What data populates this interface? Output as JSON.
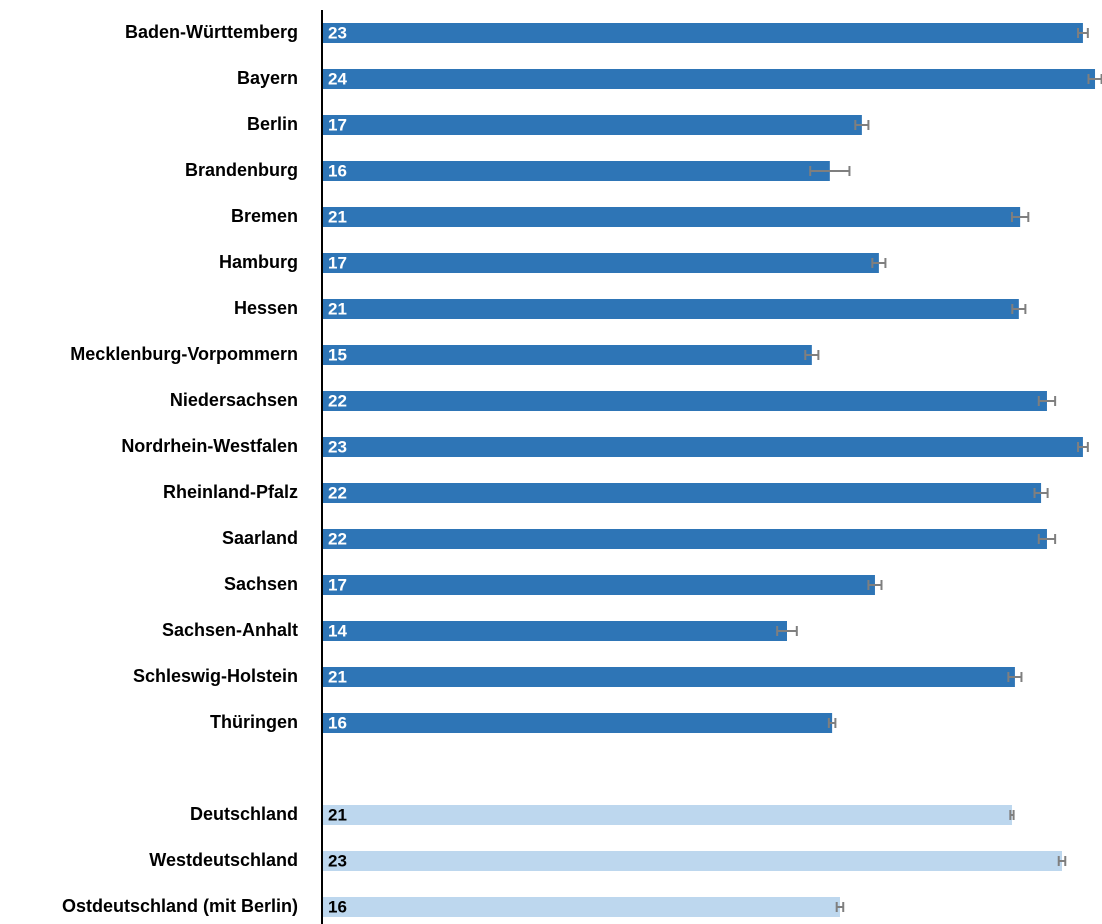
{
  "chart_data": {
    "type": "barh",
    "categories": [
      "Baden-Württemberg",
      "Bayern",
      "Berlin",
      "Brandenburg",
      "Bremen",
      "Hamburg",
      "Hessen",
      "Mecklenburg-Vorpommern",
      "Niedersachsen",
      "Nordrhein-Westfalen",
      "Rheinland-Pfalz",
      "Saarland",
      "Sachsen",
      "Sachsen-Anhalt",
      "Schleswig-Holstein",
      "Thüringen",
      null,
      "Deutschland",
      "Westdeutschland",
      "Ostdeutschland (mit Berlin)"
    ],
    "values": [
      23.27,
      23.64,
      16.51,
      15.53,
      21.35,
      17.03,
      21.31,
      14.98,
      22.17,
      23.27,
      21.99,
      22.17,
      16.91,
      14.22,
      21.19,
      15.6,
      null,
      21.1,
      22.63,
      15.84
    ],
    "value_labels": [
      "23",
      "24",
      "17",
      "16",
      "21",
      "17",
      "21",
      "15",
      "22",
      "23",
      "22",
      "22",
      "17",
      "14",
      "21",
      "16",
      null,
      "21",
      "23",
      "16"
    ],
    "errors": [
      0.15,
      0.2,
      0.2,
      0.6,
      0.25,
      0.2,
      0.2,
      0.2,
      0.25,
      0.15,
      0.2,
      0.25,
      0.2,
      0.3,
      0.2,
      0.1,
      null,
      0.05,
      0.1,
      0.1
    ],
    "colors": [
      "#2e75b6",
      "#2e75b6",
      "#2e75b6",
      "#2e75b6",
      "#2e75b6",
      "#2e75b6",
      "#2e75b6",
      "#2e75b6",
      "#2e75b6",
      "#2e75b6",
      "#2e75b6",
      "#2e75b6",
      "#2e75b6",
      "#2e75b6",
      "#2e75b6",
      "#2e75b6",
      null,
      "#bdd7ee",
      "#bdd7ee",
      "#bdd7ee"
    ],
    "xlim": [
      0,
      24
    ]
  }
}
